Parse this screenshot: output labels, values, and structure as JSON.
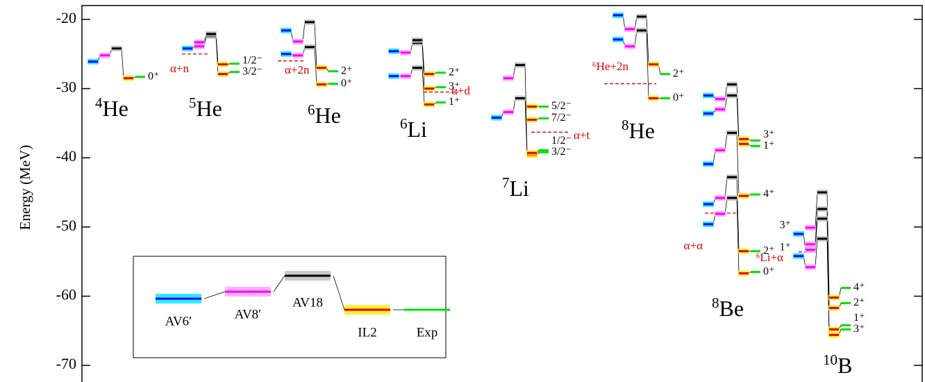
{
  "chart_data": {
    "type": "level",
    "ylabel": "Energy (MeV)",
    "ylim": [
      -72.4,
      -18
    ],
    "yticks": [
      -70,
      -60,
      -50,
      -40,
      -30,
      -20
    ],
    "series": [
      {
        "name": "AV6′",
        "color": "#0000ff",
        "band": "#00e5ff"
      },
      {
        "name": "AV8′",
        "color": "#ff00ff",
        "band": "#ff9cff"
      },
      {
        "name": "AV18",
        "color": "#000000",
        "band": "#bbbbbb"
      },
      {
        "name": "IL2",
        "color": "#e00000",
        "band": "#ffee00"
      },
      {
        "name": "Exp",
        "color": "#00e000",
        "band": "#00e000"
      }
    ],
    "nuclei": [
      {
        "mass": "4",
        "element": "He",
        "levels": [
          [
            -26.1
          ],
          [
            -25.2
          ],
          [
            -24.2
          ],
          [
            -28.5
          ],
          [
            -28.3
          ]
        ],
        "labels": [
          "0⁺"
        ]
      },
      {
        "mass": "5",
        "element": "He",
        "levels": [
          [
            -24.2
          ],
          [
            -23.9,
            -23.3
          ],
          [
            -22.4,
            -22.1
          ],
          [
            -27.9,
            -26.5
          ],
          [
            -27.6,
            -26.4
          ]
        ],
        "labels": [
          "3/2⁻",
          "1/2⁻"
        ],
        "threshold": {
          "label": "α+n",
          "energy": -25.0
        }
      },
      {
        "mass": "6",
        "element": "He",
        "levels": [
          [
            -25.0,
            -21.6
          ],
          [
            -25.2,
            -23.2
          ],
          [
            -24.0,
            -20.4
          ],
          [
            -29.4,
            -27.0
          ],
          [
            -29.3,
            -27.5
          ]
        ],
        "labels": [
          "0⁺",
          "2⁺"
        ],
        "threshold": {
          "label": "α+2n",
          "energy": -26.0
        }
      },
      {
        "mass": "6",
        "element": "Li",
        "levels": [
          [
            -28.2,
            -24.6
          ],
          [
            -28.2,
            -24.8
          ],
          [
            -27.0,
            -23.4,
            -23.0
          ],
          [
            -32.3,
            -30.0,
            -27.9
          ],
          [
            -32.0,
            -29.8,
            -27.7
          ]
        ],
        "labels": [
          "1⁺",
          "3⁺",
          "2⁺"
        ],
        "threshold": {
          "label": "α+d",
          "energy": -30.5
        }
      },
      {
        "mass": "7",
        "element": "Li",
        "levels": [
          [
            -34.2
          ],
          [
            -33.4,
            -28.5
          ],
          [
            -31.4,
            -26.6
          ],
          [
            -39.6,
            -39.3,
            -34.5,
            -32.6
          ],
          [
            -39.2,
            -38.9,
            -34.3,
            -32.6
          ]
        ],
        "labels": [
          "3/2⁻",
          "1/2⁻",
          "7/2⁻",
          "5/2⁻"
        ],
        "threshold": {
          "label": "α+t",
          "energy": -36.3
        }
      },
      {
        "mass": "8",
        "element": "He",
        "levels": [
          [
            -22.9,
            -19.4
          ],
          [
            -23.9,
            -21.4
          ],
          [
            -21.6,
            -19.6
          ],
          [
            -31.4,
            -26.5
          ],
          [
            -31.4,
            -27.9
          ]
        ],
        "labels": [
          "0⁺",
          "2⁺"
        ],
        "threshold": {
          "label": "⁶He+2n",
          "energy": -29.3
        }
      },
      {
        "mass": "8",
        "element": "Be",
        "levels": [
          [
            -49.6,
            -46.7,
            -40.9,
            -33.6,
            -31.0
          ],
          [
            -48.1,
            -45.8,
            -38.9,
            -33.0,
            -31.5
          ],
          [
            -45.8,
            -42.8,
            -36.4,
            -31.0,
            -29.4
          ],
          [
            -56.7,
            -53.5,
            -45.5,
            -38.0,
            -37.3
          ],
          [
            -56.5,
            -53.5,
            -45.3,
            -38.3,
            -37.5
          ]
        ],
        "labels": [
          "0⁺",
          "2⁺",
          "4⁺",
          "1⁺",
          "3⁺"
        ],
        "threshold": {
          "label": "α+α",
          "energy": -48.0
        }
      },
      {
        "mass": "10",
        "element": "B",
        "levels": [
          [
            -54.2,
            -51.0
          ],
          [
            -55.8,
            -53.3,
            -52.5,
            -50.1
          ],
          [
            -51.7,
            -48.8,
            -47.4,
            -45.0
          ],
          [
            -65.6,
            -64.8,
            -61.7,
            -60.2
          ],
          [
            -64.8,
            -64.2,
            -61.0,
            -58.8
          ]
        ],
        "labels": [
          "3⁺",
          "1⁺",
          "2⁺",
          "4⁺"
        ],
        "left_labels": [
          "1⁺",
          "3⁺"
        ],
        "threshold": {
          "label": "⁶Li+α",
          "energy": -53.6
        }
      }
    ]
  }
}
